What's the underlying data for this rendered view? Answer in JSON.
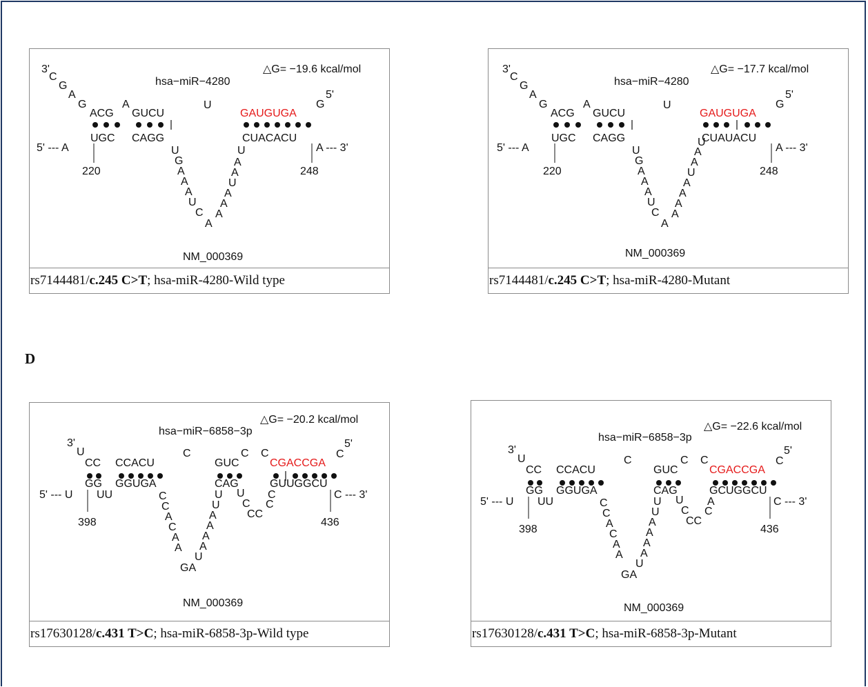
{
  "section_label": "D",
  "panels": [
    {
      "mirna": "hsa−miR−4280",
      "dg": "△G= −19.6 kcal/mol",
      "transcript": "NM_000369",
      "caption": {
        "rs": "rs7144481/",
        "change": "c.245 C>T",
        "rest": "; hsa-miR-4280-Wild type"
      },
      "seed": "GAUGUGA",
      "positions": [
        "220",
        "248"
      ]
    },
    {
      "mirna": "hsa−miR−4280",
      "dg": "△G= −17.7 kcal/mol",
      "transcript": "NM_000369",
      "caption": {
        "rs": "rs7144481/",
        "change": "c.245 C>T",
        "rest": "; hsa-miR-4280-Mutant"
      },
      "seed": "GAUGUGA",
      "positions": [
        "220",
        "248"
      ]
    },
    {
      "mirna": "hsa−miR−6858−3p",
      "dg": "△G= −20.2 kcal/mol",
      "transcript": "NM_000369",
      "caption": {
        "rs": "rs17630128/",
        "change": "c.431 T>C",
        "rest": "; hsa-miR-6858-3p-Wild type"
      },
      "seed": "CGACCGA",
      "positions": [
        "398",
        "436"
      ]
    },
    {
      "mirna": "hsa−miR−6858−3p",
      "dg": "△G= −22.6 kcal/mol",
      "transcript": "NM_000369",
      "caption": {
        "rs": "rs17630128/",
        "change": "c.431 T>C",
        "rest": "; hsa-miR-6858-3p-Mutant"
      },
      "seed": "CGACCGA",
      "positions": [
        "398",
        "436"
      ]
    }
  ],
  "colors": {
    "seed": "#e51a1a",
    "frame": "#1f3864",
    "border": "#8a8a8a"
  }
}
